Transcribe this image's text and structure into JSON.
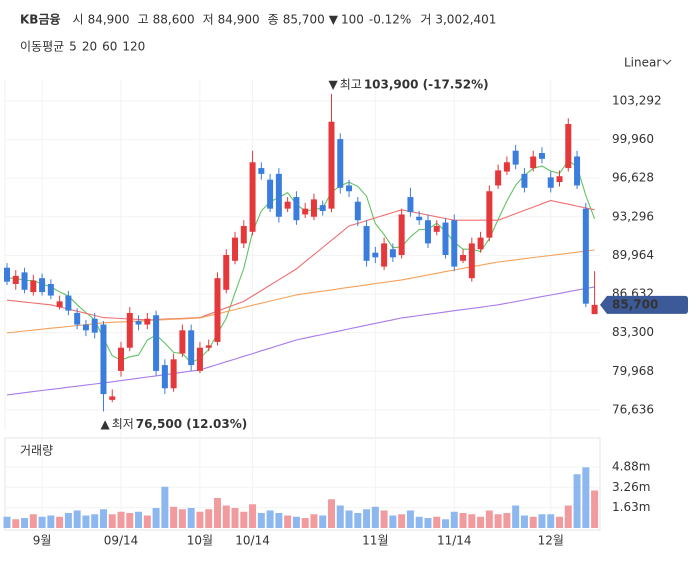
{
  "chart_data": {
    "type": "candlestick",
    "title": "KB금융",
    "header": [
      {
        "label": "시",
        "value": "84,900"
      },
      {
        "label": "고",
        "value": "88,600"
      },
      {
        "label": "저",
        "value": "84,900"
      },
      {
        "label": "종",
        "value": "85,700"
      }
    ],
    "change": {
      "arrow": "▼",
      "amount": "100",
      "percent": "-0.12%"
    },
    "volume_header": {
      "label": "거",
      "value": "3,002,401"
    },
    "ma_title": "이동평균",
    "scale_button": "Linear",
    "up_color": "#e5383b",
    "down_color": "#3b7ddd",
    "open": [
      88900,
      87500,
      88500,
      86800,
      88000,
      87500,
      85500,
      86500,
      85000,
      84000,
      84500,
      84000,
      77500,
      80000,
      82000,
      84300,
      84000,
      84800,
      80500,
      78500,
      81500,
      83500,
      80000,
      82000,
      82500,
      87000,
      89500,
      91000,
      92000,
      97500,
      96500,
      97000,
      94000,
      95000,
      93500,
      93300,
      94300,
      94000,
      100000,
      96000,
      94600,
      92500,
      90200,
      89000,
      90500,
      90000,
      95000,
      93300,
      93000,
      92000,
      92800,
      93000,
      89500,
      88000,
      90500,
      91500,
      96000,
      97200,
      99000,
      97000,
      97500,
      98800,
      96700,
      96300,
      97500,
      98500,
      94000,
      84900
    ],
    "high": [
      89300,
      88700,
      88900,
      88300,
      88400,
      87900,
      86500,
      86900,
      85400,
      84400,
      85000,
      84300,
      78400,
      82500,
      85500,
      84800,
      85000,
      85200,
      81000,
      81500,
      84000,
      84000,
      82500,
      82700,
      88500,
      90500,
      92000,
      93000,
      99000,
      98000,
      97000,
      97500,
      95000,
      95500,
      94500,
      95300,
      94700,
      103900,
      100500,
      96500,
      95000,
      93000,
      90700,
      91500,
      91000,
      94000,
      95800,
      93800,
      93500,
      93000,
      93200,
      93500,
      90500,
      91500,
      92000,
      96000,
      97800,
      98500,
      99500,
      97500,
      99000,
      99300,
      97200,
      97300,
      101800,
      99000,
      94500,
      88600
    ],
    "low": [
      87400,
      87000,
      86700,
      86500,
      86500,
      86200,
      85300,
      84800,
      83600,
      83000,
      82800,
      76500,
      77300,
      79500,
      81700,
      83500,
      83600,
      79600,
      78000,
      78200,
      81200,
      80000,
      79800,
      81700,
      82200,
      86700,
      89200,
      90600,
      91700,
      96500,
      93700,
      92800,
      93700,
      92600,
      93200,
      93000,
      93400,
      93700,
      95300,
      95000,
      92500,
      89000,
      89300,
      88700,
      89400,
      89700,
      93300,
      92600,
      90600,
      91700,
      89700,
      88600,
      89300,
      87700,
      90200,
      91200,
      95700,
      96900,
      97400,
      95400,
      97200,
      97900,
      95400,
      95900,
      97200,
      95700,
      85500,
      84900
    ],
    "close": [
      87700,
      88200,
      87000,
      87800,
      86800,
      86500,
      86000,
      85200,
      84000,
      83500,
      83300,
      78000,
      77800,
      82000,
      85000,
      84000,
      84500,
      80000,
      78500,
      81000,
      83500,
      80500,
      82000,
      82200,
      88000,
      90000,
      91500,
      92500,
      98000,
      97000,
      94000,
      93300,
      94600,
      93000,
      94000,
      94800,
      93800,
      101500,
      95800,
      95500,
      93000,
      89500,
      89800,
      91000,
      89800,
      93500,
      93700,
      93000,
      91000,
      92500,
      90000,
      89000,
      90000,
      91000,
      91500,
      95500,
      97300,
      98000,
      97800,
      95800,
      98500,
      98300,
      95800,
      96800,
      101300,
      96000,
      85800,
      85700
    ],
    "series": [
      {
        "name": "5",
        "color": "#62c462",
        "values": [
          88000,
          88000,
          87800,
          87800,
          87500,
          87260,
          86820,
          86460,
          85700,
          85040,
          84400,
          82800,
          81320,
          80920,
          81220,
          81360,
          82660,
          83100,
          82400,
          81600,
          81500,
          80700,
          81100,
          81840,
          83240,
          84540,
          86740,
          88840,
          92000,
          93800,
          94600,
          94960,
          95380,
          94380,
          93780,
          93940,
          94040,
          95420,
          95980,
          96280,
          95920,
          95060,
          92720,
          91760,
          90620,
          90720,
          91560,
          92200,
          92200,
          92740,
          92040,
          91100,
          90500,
          90500,
          90300,
          91400,
          93060,
          94660,
          96020,
          96880,
          97480,
          97680,
          97240,
          97040,
          98140,
          97640,
          95140,
          93120
        ]
      },
      {
        "name": "20",
        "color": "#f07070",
        "values": [
          86100,
          86020,
          85940,
          85860,
          85780,
          85700,
          85520,
          85330,
          85150,
          84970,
          84780,
          84600,
          84560,
          84520,
          84480,
          84440,
          84400,
          84430,
          84470,
          84500,
          84530,
          84570,
          84600,
          84880,
          85160,
          85440,
          85720,
          86000,
          86470,
          86930,
          87400,
          87870,
          88330,
          88800,
          89420,
          90030,
          90650,
          91270,
          91880,
          92500,
          92730,
          92970,
          93200,
          93430,
          93670,
          93900,
          93750,
          93600,
          93450,
          93300,
          93150,
          93000,
          93000,
          93000,
          93000,
          93000,
          93000,
          93280,
          93570,
          93850,
          94130,
          94420,
          94700,
          94540,
          94380,
          94220,
          94060,
          93900
        ]
      },
      {
        "name": "60",
        "color": "#f5a25a",
        "values": [
          83280,
          83360,
          83440,
          83520,
          83600,
          83680,
          83750,
          83830,
          83910,
          83990,
          84070,
          84150,
          84190,
          84230,
          84260,
          84300,
          84340,
          84380,
          84420,
          84460,
          84490,
          84530,
          84570,
          84750,
          84930,
          85110,
          85290,
          85480,
          85660,
          85840,
          86020,
          86200,
          86380,
          86560,
          86670,
          86780,
          86880,
          86990,
          87100,
          87210,
          87310,
          87420,
          87530,
          87640,
          87740,
          87850,
          87990,
          88140,
          88280,
          88420,
          88570,
          88710,
          88850,
          88990,
          89120,
          89260,
          89400,
          89490,
          89590,
          89680,
          89780,
          89870,
          89960,
          90060,
          90150,
          90240,
          90340,
          90430
        ]
      },
      {
        "name": "120",
        "color": "#a97be8",
        "values": [
          77930,
          78020,
          78120,
          78210,
          78310,
          78400,
          78490,
          78590,
          78680,
          78770,
          78870,
          78960,
          79060,
          79160,
          79270,
          79370,
          79470,
          79570,
          79670,
          79770,
          79880,
          79980,
          80080,
          80320,
          80550,
          80790,
          81020,
          81260,
          81490,
          81730,
          81960,
          82200,
          82430,
          82670,
          82830,
          82990,
          83140,
          83300,
          83460,
          83620,
          83780,
          83940,
          84100,
          84250,
          84410,
          84570,
          84670,
          84780,
          84880,
          84980,
          85090,
          85190,
          85290,
          85390,
          85490,
          85600,
          85700,
          85840,
          85980,
          86120,
          86270,
          86410,
          86550,
          86690,
          86830,
          86970,
          87110,
          87250
        ]
      }
    ],
    "ylim": [
      74900,
      105100
    ],
    "yticks": [
      {
        "value": 103292,
        "label": "103,292"
      },
      {
        "value": 99960,
        "label": "99,960"
      },
      {
        "value": 96628,
        "label": "96,628"
      },
      {
        "value": 93296,
        "label": "93,296"
      },
      {
        "value": 89964,
        "label": "89,964"
      },
      {
        "value": 86632,
        "label": "86,632"
      },
      {
        "value": 83300,
        "label": "83,300"
      },
      {
        "value": 79968,
        "label": "79,968"
      },
      {
        "value": 76636,
        "label": "76,636"
      }
    ],
    "xticks": [
      {
        "value": 4,
        "label": "9월"
      },
      {
        "value": 13,
        "label": "09/14"
      },
      {
        "value": 22,
        "label": "10월"
      },
      {
        "value": 28,
        "label": "10/14"
      },
      {
        "value": 42,
        "label": "11월"
      },
      {
        "value": 51,
        "label": "11/14"
      },
      {
        "value": 62,
        "label": "12월"
      }
    ],
    "grid": true,
    "annotations": [
      {
        "marker": "▼",
        "label": "최고",
        "text": "103,900 (-17.52%)"
      },
      {
        "marker": "▲",
        "label": "최저",
        "text": "76,500 (12.03%)"
      }
    ],
    "last_label": "85,700",
    "volume": {
      "title": "거래량",
      "values": [
        900000,
        700000,
        800000,
        1100000,
        900000,
        1000000,
        900000,
        1200000,
        1400000,
        1000000,
        1100000,
        1500000,
        1100000,
        1300000,
        1200000,
        1300000,
        1000000,
        1600000,
        3300000,
        1700000,
        1500000,
        1600000,
        1300000,
        1500000,
        2400000,
        1800000,
        1600000,
        1300000,
        1900000,
        1200000,
        1400000,
        1200000,
        1000000,
        900000,
        800000,
        1100000,
        1000000,
        2300000,
        1800000,
        1400000,
        1200000,
        1500000,
        1700000,
        1400000,
        1000000,
        1100000,
        1400000,
        900000,
        800000,
        900000,
        700000,
        1300000,
        1200000,
        1100000,
        900000,
        1400000,
        1100000,
        1200000,
        1800000,
        1000000,
        900000,
        1100000,
        1100000,
        900000,
        1800000,
        4300000,
        4850000,
        3002401
      ],
      "ylim": [
        0,
        7040000
      ],
      "yticks": [
        {
          "value": 4880000,
          "label": "4.88m"
        },
        {
          "value": 3260000,
          "label": "3.26m"
        },
        {
          "value": 1630000,
          "label": "1.63m"
        }
      ]
    }
  }
}
